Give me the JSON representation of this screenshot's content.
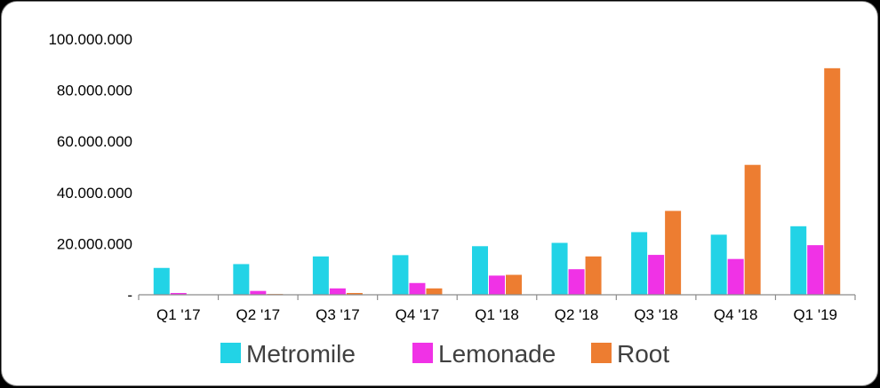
{
  "chart_data": {
    "type": "bar",
    "categories": [
      "Q1 '17",
      "Q2 '17",
      "Q3 '17",
      "Q4 '17",
      "Q1 '18",
      "Q2 '18",
      "Q3 '18",
      "Q4 '18",
      "Q1 '19"
    ],
    "series": [
      {
        "name": "Metromile",
        "color": "#22d3e6",
        "values": [
          10500000,
          12000000,
          15000000,
          15500000,
          19000000,
          20300000,
          24500000,
          23500000,
          26800000
        ]
      },
      {
        "name": "Lemonade",
        "color": "#f032e6",
        "values": [
          700000,
          1500000,
          2500000,
          4600000,
          7500000,
          10000000,
          15600000,
          14000000,
          19400000
        ]
      },
      {
        "name": "Root",
        "color": "#ed7d31",
        "values": [
          0,
          300000,
          700000,
          2500000,
          7800000,
          15000000,
          32800000,
          50800000,
          88600000
        ]
      }
    ],
    "yticks": [
      0,
      20000000,
      40000000,
      60000000,
      80000000,
      100000000
    ],
    "ytick_labels": [
      "-",
      "20.000.000",
      "40.000.000",
      "60.000.000",
      "80.000.000",
      "100.000.000"
    ],
    "ylim": [
      0,
      100000000
    ],
    "title": "",
    "xlabel": "",
    "ylabel": "",
    "grid": false,
    "legend": "bottom"
  }
}
